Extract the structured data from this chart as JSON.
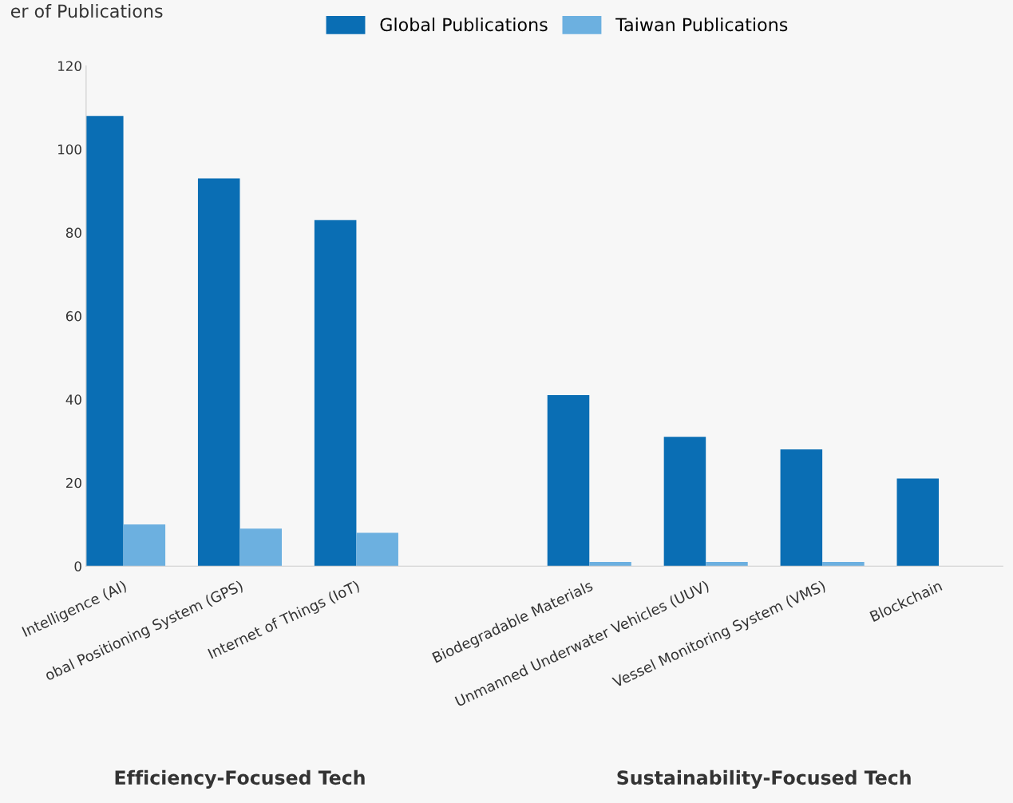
{
  "chart_data": {
    "type": "bar",
    "ylabel": "er of Publications",
    "categories": [
      "Intelligence (AI)",
      "obal Positioning System (GPS)",
      "Internet of Things (IoT)",
      null,
      "Biodegradable Materials",
      "Unmanned Underwater Vehicles (UUV)",
      "Vessel Monitoring System (VMS)",
      "Blockchain"
    ],
    "series": [
      {
        "name": "Global Publications",
        "color": "#0a6eb4",
        "values": [
          108,
          93,
          83,
          null,
          41,
          31,
          28,
          21
        ]
      },
      {
        "name": "Taiwan Publications",
        "color": "#6cb0e0",
        "values": [
          10,
          9,
          8,
          null,
          1,
          1,
          1,
          0
        ]
      }
    ],
    "ylim": [
      0,
      120
    ],
    "yticks": [
      0,
      20,
      40,
      60,
      80,
      100,
      120
    ],
    "grid": false,
    "legend": "top",
    "annotations": [
      "Efficiency-Focused Tech",
      "Sustainability-Focused Tech"
    ]
  }
}
